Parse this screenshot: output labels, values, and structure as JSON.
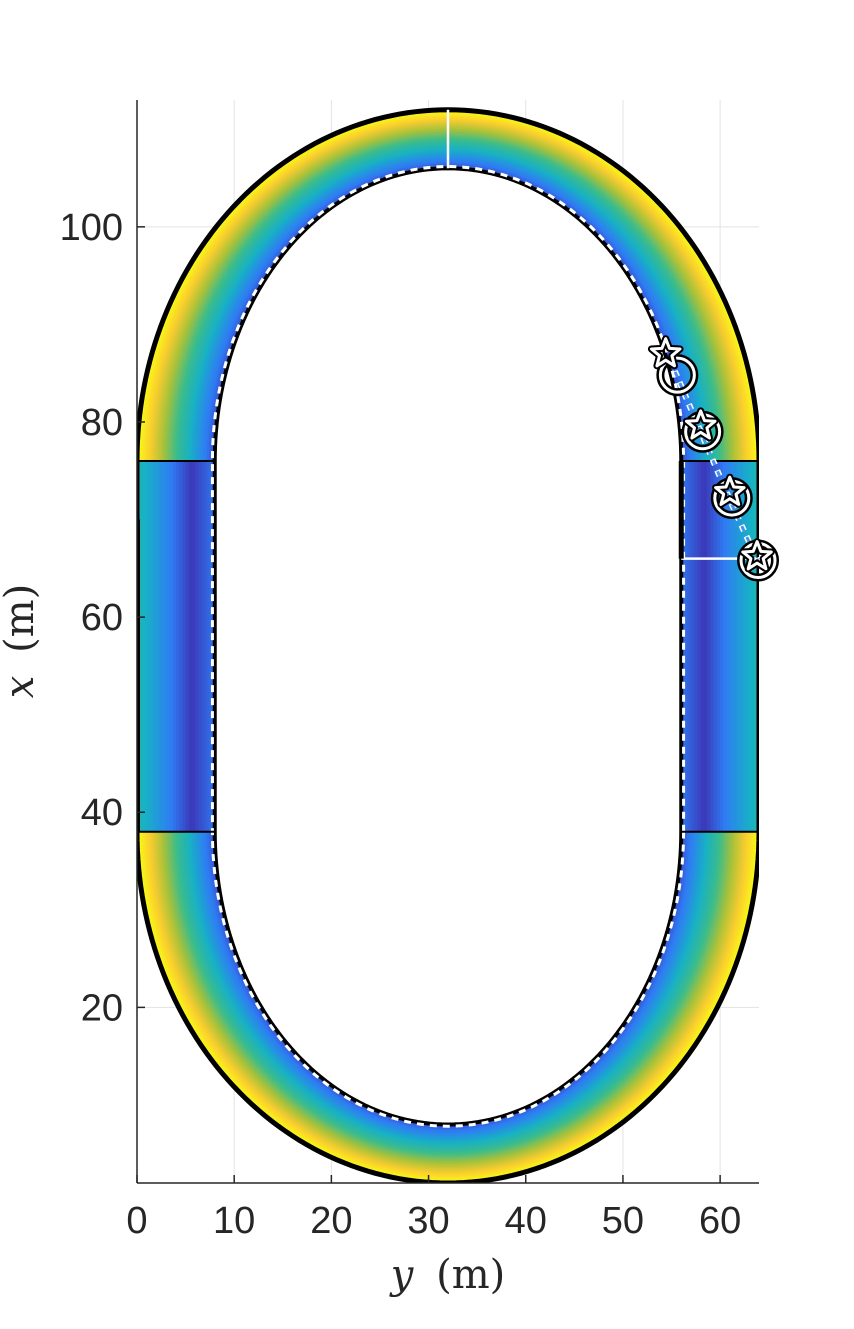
{
  "chart_data": {
    "type": "track",
    "xlabel": "y (m)",
    "ylabel": "x (m)",
    "xlabel_var": "y",
    "ylabel_var": "x",
    "unit": "(m)",
    "xlim": [
      0,
      64
    ],
    "ylim": [
      2,
      113
    ],
    "xticks": [
      0,
      10,
      20,
      30,
      40,
      50,
      60
    ],
    "yticks": [
      20,
      40,
      60,
      80,
      100
    ],
    "grid": true,
    "track": {
      "center_y": 32,
      "straight_x_min": 38,
      "straight_x_max": 76,
      "inner_straight_offset": 24,
      "outer_straight_offset": 32,
      "inner_bottom_x": 8,
      "outer_bottom_x": 2,
      "inner_top_x": 106,
      "outer_top_x": 112,
      "finish_line": {
        "y_start": 56,
        "y_end": 64,
        "x": 66
      },
      "top_line": {
        "y": 32,
        "x_start": 106,
        "x_end": 112
      }
    },
    "colormap": [
      "#3e26a8",
      "#2f7cf4",
      "#17b0c6",
      "#3bbc8b",
      "#a8c13a",
      "#f9cc2f",
      "#f9fb15"
    ],
    "trajectory": {
      "color": "#4a90f0",
      "points": [
        {
          "y": 64,
          "x": 65.5
        },
        {
          "y": 61,
          "x": 72
        },
        {
          "y": 58,
          "x": 79
        },
        {
          "y": 55,
          "x": 86
        }
      ]
    },
    "markers": {
      "circles": [
        {
          "y": 63.9,
          "x": 65.8
        },
        {
          "y": 61.2,
          "x": 72.2
        },
        {
          "y": 58.2,
          "x": 79.0
        },
        {
          "y": 55.6,
          "x": 84.8
        }
      ],
      "stars": [
        {
          "y": 63.8,
          "x": 66.2
        },
        {
          "y": 61.0,
          "x": 72.8
        },
        {
          "y": 58.0,
          "x": 79.6
        },
        {
          "y": 54.4,
          "x": 87.0
        }
      ]
    }
  }
}
